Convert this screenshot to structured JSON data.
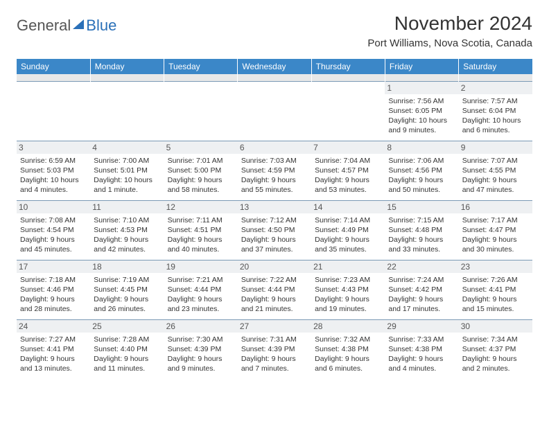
{
  "logo": {
    "part1": "General",
    "part2": "Blue"
  },
  "title": "November 2024",
  "subtitle": "Port Williams, Nova Scotia, Canada",
  "colors": {
    "header_bg": "#3b87c8",
    "header_fg": "#ffffff",
    "cell_border": "#7a99b5",
    "daynum_bg": "#eef0f2",
    "logo_accent": "#2a70b8",
    "text": "#333333"
  },
  "day_headers": [
    "Sunday",
    "Monday",
    "Tuesday",
    "Wednesday",
    "Thursday",
    "Friday",
    "Saturday"
  ],
  "weeks": [
    [
      {
        "day": "",
        "sunrise": "",
        "sunset": "",
        "daylight": ""
      },
      {
        "day": "",
        "sunrise": "",
        "sunset": "",
        "daylight": ""
      },
      {
        "day": "",
        "sunrise": "",
        "sunset": "",
        "daylight": ""
      },
      {
        "day": "",
        "sunrise": "",
        "sunset": "",
        "daylight": ""
      },
      {
        "day": "",
        "sunrise": "",
        "sunset": "",
        "daylight": ""
      },
      {
        "day": "1",
        "sunrise": "Sunrise: 7:56 AM",
        "sunset": "Sunset: 6:05 PM",
        "daylight": "Daylight: 10 hours and 9 minutes."
      },
      {
        "day": "2",
        "sunrise": "Sunrise: 7:57 AM",
        "sunset": "Sunset: 6:04 PM",
        "daylight": "Daylight: 10 hours and 6 minutes."
      }
    ],
    [
      {
        "day": "3",
        "sunrise": "Sunrise: 6:59 AM",
        "sunset": "Sunset: 5:03 PM",
        "daylight": "Daylight: 10 hours and 4 minutes."
      },
      {
        "day": "4",
        "sunrise": "Sunrise: 7:00 AM",
        "sunset": "Sunset: 5:01 PM",
        "daylight": "Daylight: 10 hours and 1 minute."
      },
      {
        "day": "5",
        "sunrise": "Sunrise: 7:01 AM",
        "sunset": "Sunset: 5:00 PM",
        "daylight": "Daylight: 9 hours and 58 minutes."
      },
      {
        "day": "6",
        "sunrise": "Sunrise: 7:03 AM",
        "sunset": "Sunset: 4:59 PM",
        "daylight": "Daylight: 9 hours and 55 minutes."
      },
      {
        "day": "7",
        "sunrise": "Sunrise: 7:04 AM",
        "sunset": "Sunset: 4:57 PM",
        "daylight": "Daylight: 9 hours and 53 minutes."
      },
      {
        "day": "8",
        "sunrise": "Sunrise: 7:06 AM",
        "sunset": "Sunset: 4:56 PM",
        "daylight": "Daylight: 9 hours and 50 minutes."
      },
      {
        "day": "9",
        "sunrise": "Sunrise: 7:07 AM",
        "sunset": "Sunset: 4:55 PM",
        "daylight": "Daylight: 9 hours and 47 minutes."
      }
    ],
    [
      {
        "day": "10",
        "sunrise": "Sunrise: 7:08 AM",
        "sunset": "Sunset: 4:54 PM",
        "daylight": "Daylight: 9 hours and 45 minutes."
      },
      {
        "day": "11",
        "sunrise": "Sunrise: 7:10 AM",
        "sunset": "Sunset: 4:53 PM",
        "daylight": "Daylight: 9 hours and 42 minutes."
      },
      {
        "day": "12",
        "sunrise": "Sunrise: 7:11 AM",
        "sunset": "Sunset: 4:51 PM",
        "daylight": "Daylight: 9 hours and 40 minutes."
      },
      {
        "day": "13",
        "sunrise": "Sunrise: 7:12 AM",
        "sunset": "Sunset: 4:50 PM",
        "daylight": "Daylight: 9 hours and 37 minutes."
      },
      {
        "day": "14",
        "sunrise": "Sunrise: 7:14 AM",
        "sunset": "Sunset: 4:49 PM",
        "daylight": "Daylight: 9 hours and 35 minutes."
      },
      {
        "day": "15",
        "sunrise": "Sunrise: 7:15 AM",
        "sunset": "Sunset: 4:48 PM",
        "daylight": "Daylight: 9 hours and 33 minutes."
      },
      {
        "day": "16",
        "sunrise": "Sunrise: 7:17 AM",
        "sunset": "Sunset: 4:47 PM",
        "daylight": "Daylight: 9 hours and 30 minutes."
      }
    ],
    [
      {
        "day": "17",
        "sunrise": "Sunrise: 7:18 AM",
        "sunset": "Sunset: 4:46 PM",
        "daylight": "Daylight: 9 hours and 28 minutes."
      },
      {
        "day": "18",
        "sunrise": "Sunrise: 7:19 AM",
        "sunset": "Sunset: 4:45 PM",
        "daylight": "Daylight: 9 hours and 26 minutes."
      },
      {
        "day": "19",
        "sunrise": "Sunrise: 7:21 AM",
        "sunset": "Sunset: 4:44 PM",
        "daylight": "Daylight: 9 hours and 23 minutes."
      },
      {
        "day": "20",
        "sunrise": "Sunrise: 7:22 AM",
        "sunset": "Sunset: 4:44 PM",
        "daylight": "Daylight: 9 hours and 21 minutes."
      },
      {
        "day": "21",
        "sunrise": "Sunrise: 7:23 AM",
        "sunset": "Sunset: 4:43 PM",
        "daylight": "Daylight: 9 hours and 19 minutes."
      },
      {
        "day": "22",
        "sunrise": "Sunrise: 7:24 AM",
        "sunset": "Sunset: 4:42 PM",
        "daylight": "Daylight: 9 hours and 17 minutes."
      },
      {
        "day": "23",
        "sunrise": "Sunrise: 7:26 AM",
        "sunset": "Sunset: 4:41 PM",
        "daylight": "Daylight: 9 hours and 15 minutes."
      }
    ],
    [
      {
        "day": "24",
        "sunrise": "Sunrise: 7:27 AM",
        "sunset": "Sunset: 4:41 PM",
        "daylight": "Daylight: 9 hours and 13 minutes."
      },
      {
        "day": "25",
        "sunrise": "Sunrise: 7:28 AM",
        "sunset": "Sunset: 4:40 PM",
        "daylight": "Daylight: 9 hours and 11 minutes."
      },
      {
        "day": "26",
        "sunrise": "Sunrise: 7:30 AM",
        "sunset": "Sunset: 4:39 PM",
        "daylight": "Daylight: 9 hours and 9 minutes."
      },
      {
        "day": "27",
        "sunrise": "Sunrise: 7:31 AM",
        "sunset": "Sunset: 4:39 PM",
        "daylight": "Daylight: 9 hours and 7 minutes."
      },
      {
        "day": "28",
        "sunrise": "Sunrise: 7:32 AM",
        "sunset": "Sunset: 4:38 PM",
        "daylight": "Daylight: 9 hours and 6 minutes."
      },
      {
        "day": "29",
        "sunrise": "Sunrise: 7:33 AM",
        "sunset": "Sunset: 4:38 PM",
        "daylight": "Daylight: 9 hours and 4 minutes."
      },
      {
        "day": "30",
        "sunrise": "Sunrise: 7:34 AM",
        "sunset": "Sunset: 4:37 PM",
        "daylight": "Daylight: 9 hours and 2 minutes."
      }
    ]
  ]
}
